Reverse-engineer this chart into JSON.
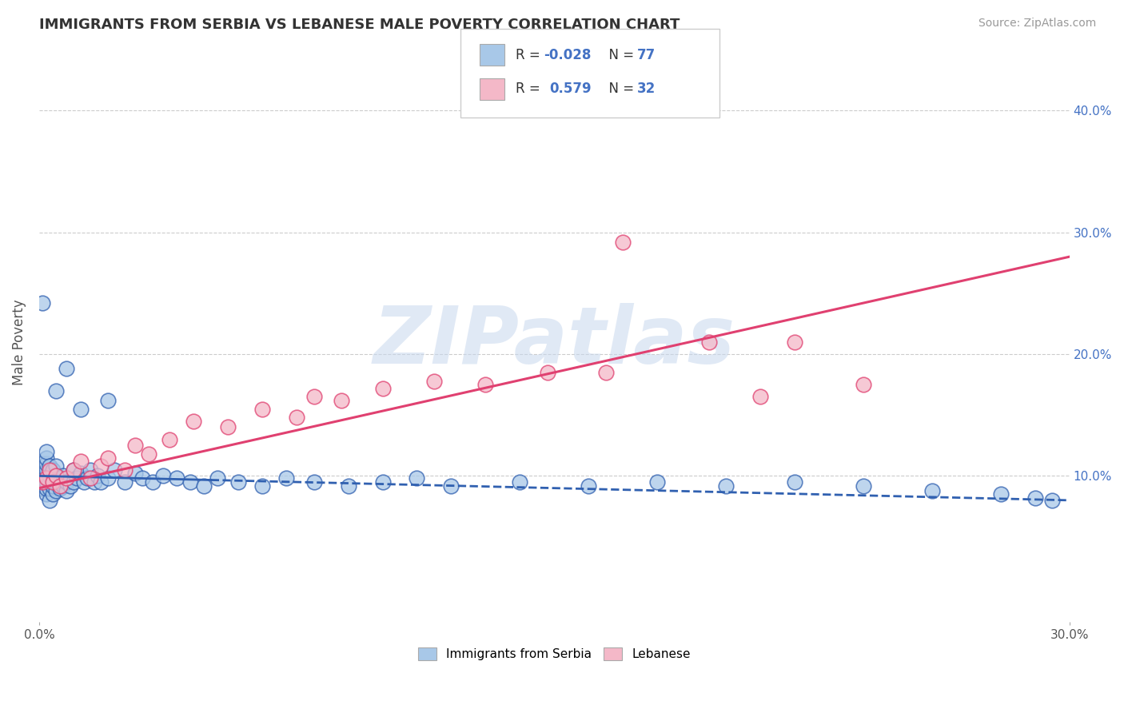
{
  "title": "IMMIGRANTS FROM SERBIA VS LEBANESE MALE POVERTY CORRELATION CHART",
  "source": "Source: ZipAtlas.com",
  "ylabel_left": "Male Poverty",
  "series1_label": "Immigrants from Serbia",
  "series2_label": "Lebanese",
  "series1_R": "-0.028",
  "series1_N": "77",
  "series2_R": "0.579",
  "series2_N": "32",
  "series1_color": "#a8c8e8",
  "series2_color": "#f4b8c8",
  "trendline1_color": "#3060b0",
  "trendline2_color": "#e04070",
  "xmin": 0.0,
  "xmax": 0.3,
  "ymin": -0.02,
  "ymax": 0.44,
  "watermark_text": "ZIPatlas",
  "background_color": "#ffffff",
  "grid_color": "#cccccc",
  "series1_x": [
    0.001,
    0.001,
    0.001,
    0.001,
    0.001,
    0.002,
    0.002,
    0.002,
    0.002,
    0.002,
    0.002,
    0.002,
    0.002,
    0.003,
    0.003,
    0.003,
    0.003,
    0.003,
    0.004,
    0.004,
    0.004,
    0.004,
    0.005,
    0.005,
    0.005,
    0.005,
    0.006,
    0.006,
    0.007,
    0.007,
    0.008,
    0.008,
    0.009,
    0.01,
    0.01,
    0.011,
    0.012,
    0.013,
    0.014,
    0.015,
    0.016,
    0.017,
    0.018,
    0.02,
    0.022,
    0.025,
    0.028,
    0.03,
    0.033,
    0.036,
    0.04,
    0.044,
    0.048,
    0.052,
    0.058,
    0.065,
    0.072,
    0.08,
    0.09,
    0.1,
    0.11,
    0.12,
    0.14,
    0.16,
    0.18,
    0.2,
    0.22,
    0.24,
    0.26,
    0.28,
    0.29,
    0.295,
    0.005,
    0.008,
    0.012,
    0.02,
    0.001
  ],
  "series1_y": [
    0.09,
    0.095,
    0.1,
    0.105,
    0.11,
    0.085,
    0.09,
    0.095,
    0.1,
    0.105,
    0.11,
    0.115,
    0.12,
    0.08,
    0.09,
    0.095,
    0.1,
    0.108,
    0.085,
    0.092,
    0.098,
    0.105,
    0.088,
    0.095,
    0.1,
    0.108,
    0.09,
    0.098,
    0.092,
    0.1,
    0.088,
    0.095,
    0.092,
    0.095,
    0.105,
    0.098,
    0.102,
    0.095,
    0.098,
    0.105,
    0.095,
    0.1,
    0.095,
    0.098,
    0.105,
    0.095,
    0.102,
    0.098,
    0.095,
    0.1,
    0.098,
    0.095,
    0.092,
    0.098,
    0.095,
    0.092,
    0.098,
    0.095,
    0.092,
    0.095,
    0.098,
    0.092,
    0.095,
    0.092,
    0.095,
    0.092,
    0.095,
    0.092,
    0.088,
    0.085,
    0.082,
    0.08,
    0.17,
    0.188,
    0.155,
    0.162,
    0.242
  ],
  "series2_x": [
    0.001,
    0.002,
    0.003,
    0.004,
    0.005,
    0.006,
    0.008,
    0.01,
    0.012,
    0.015,
    0.018,
    0.02,
    0.025,
    0.028,
    0.032,
    0.038,
    0.045,
    0.055,
    0.065,
    0.075,
    0.088,
    0.1,
    0.115,
    0.13,
    0.148,
    0.165,
    0.195,
    0.22,
    0.24,
    0.21,
    0.17,
    0.08
  ],
  "series2_y": [
    0.095,
    0.098,
    0.105,
    0.095,
    0.1,
    0.092,
    0.098,
    0.105,
    0.112,
    0.098,
    0.108,
    0.115,
    0.105,
    0.125,
    0.118,
    0.13,
    0.145,
    0.14,
    0.155,
    0.148,
    0.162,
    0.172,
    0.178,
    0.175,
    0.185,
    0.185,
    0.21,
    0.21,
    0.175,
    0.165,
    0.292,
    0.165
  ],
  "trendline1_x": [
    0.0,
    0.3
  ],
  "trendline1_y": [
    0.1,
    0.08
  ],
  "trendline2_x": [
    0.0,
    0.3
  ],
  "trendline2_y": [
    0.09,
    0.28
  ],
  "legend_R1": "R = -0.028",
  "legend_N1": "N = 77",
  "legend_R2": "R =  0.579",
  "legend_N2": "N = 32"
}
